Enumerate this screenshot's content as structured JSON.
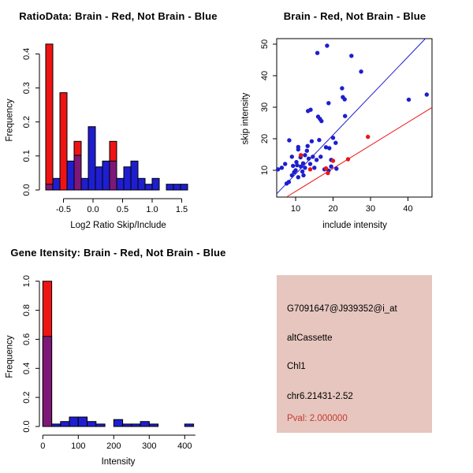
{
  "colors": {
    "red": "#EE1414",
    "blue": "#1E1ECF",
    "purple": "#7D1878",
    "pval_red": "#C53A2E",
    "panel_pink": "#E6C6BF",
    "axis": "#000000"
  },
  "chart_data": [
    {
      "type": "bar",
      "panel": "top-left",
      "title": "RatioData: Brain - Red, Not Brain - Blue",
      "xlabel": "Log2 Ratio Skip/Include",
      "ylabel": "Frequency",
      "legend_note": "red = Brain, blue = Not Brain, purple = overlap",
      "xlim": [
        -0.85,
        1.65
      ],
      "ylim": [
        0,
        0.44
      ],
      "xticks": [
        "-0.5",
        "0.0",
        "0.5",
        "1.0",
        "1.5"
      ],
      "xtick_values": [
        -0.5,
        0.0,
        0.5,
        1.0,
        1.5
      ],
      "yticks": [
        "0.0",
        "0.1",
        "0.2",
        "0.3",
        "0.4"
      ],
      "ytick_values": [
        0.0,
        0.1,
        0.2,
        0.3,
        0.4
      ],
      "bin_width": 0.12,
      "bins": [
        {
          "x": -0.8,
          "blue": 0.017,
          "red": 0.429
        },
        {
          "x": -0.68,
          "blue": 0.034,
          "red": 0
        },
        {
          "x": -0.56,
          "blue": 0,
          "red": 0.286
        },
        {
          "x": -0.44,
          "blue": 0.085,
          "red": 0
        },
        {
          "x": -0.32,
          "blue": 0.102,
          "red": 0.143
        },
        {
          "x": -0.2,
          "blue": 0.034,
          "red": 0
        },
        {
          "x": -0.08,
          "blue": 0.186,
          "red": 0
        },
        {
          "x": 0.04,
          "blue": 0.068,
          "red": 0
        },
        {
          "x": 0.16,
          "blue": 0.085,
          "red": 0
        },
        {
          "x": 0.28,
          "blue": 0.085,
          "red": 0.143
        },
        {
          "x": 0.4,
          "blue": 0.034,
          "red": 0
        },
        {
          "x": 0.52,
          "blue": 0.068,
          "red": 0
        },
        {
          "x": 0.64,
          "blue": 0.085,
          "red": 0
        },
        {
          "x": 0.76,
          "blue": 0.034,
          "red": 0
        },
        {
          "x": 0.88,
          "blue": 0.017,
          "red": 0
        },
        {
          "x": 1.0,
          "blue": 0.034,
          "red": 0
        },
        {
          "x": 1.12,
          "blue": 0,
          "red": 0
        },
        {
          "x": 1.24,
          "blue": 0.017,
          "red": 0
        },
        {
          "x": 1.36,
          "blue": 0.017,
          "red": 0
        },
        {
          "x": 1.48,
          "blue": 0.017,
          "red": 0
        }
      ]
    },
    {
      "type": "scatter",
      "panel": "top-right",
      "title": "Brain - Red, Not Brain - Blue",
      "xlabel": "include intensity",
      "ylabel": "skip intensity",
      "xlim": [
        4.9,
        46.4
      ],
      "ylim": [
        1.5,
        51.8
      ],
      "xticks": [
        "10",
        "20",
        "30",
        "40"
      ],
      "xtick_values": [
        10,
        20,
        30,
        40
      ],
      "yticks": [
        "10",
        "20",
        "30",
        "40",
        "50"
      ],
      "ytick_values": [
        10,
        20,
        30,
        40,
        50
      ],
      "blue_points": [
        [
          15.8,
          47.2
        ],
        [
          18.4,
          49.5
        ],
        [
          24.9,
          46.3
        ],
        [
          27.5,
          41.3
        ],
        [
          22.4,
          36.0
        ],
        [
          22.6,
          33.2
        ],
        [
          23.1,
          32.5
        ],
        [
          18.8,
          31.3
        ],
        [
          13.3,
          28.8
        ],
        [
          16.0,
          27.0
        ],
        [
          16.5,
          26.3
        ],
        [
          16.9,
          25.6
        ],
        [
          23.2,
          27.2
        ],
        [
          40.2,
          32.4
        ],
        [
          45.0,
          34.0
        ],
        [
          8.3,
          19.5
        ],
        [
          14.3,
          19.2
        ],
        [
          16.3,
          19.6
        ],
        [
          20.0,
          20.3
        ],
        [
          20.7,
          18.7
        ],
        [
          19.0,
          17.0
        ],
        [
          10.7,
          16.6
        ],
        [
          13.0,
          16.2
        ],
        [
          10.7,
          17.4
        ],
        [
          13.2,
          17.7
        ],
        [
          18.1,
          17.3
        ],
        [
          9.0,
          14.3
        ],
        [
          12.5,
          14.8
        ],
        [
          13.5,
          13.7
        ],
        [
          14.6,
          14.3
        ],
        [
          15.6,
          13.3
        ],
        [
          16.7,
          14.3
        ],
        [
          19.5,
          13.3
        ],
        [
          7.2,
          12.0
        ],
        [
          9.3,
          11.4
        ],
        [
          10.4,
          11.6
        ],
        [
          11.4,
          11.2
        ],
        [
          12.5,
          10.8
        ],
        [
          15.0,
          10.8
        ],
        [
          17.7,
          10.3
        ],
        [
          18.8,
          9.9
        ],
        [
          9.0,
          8.4
        ],
        [
          10.7,
          7.8
        ],
        [
          12.1,
          8.4
        ],
        [
          6.3,
          10.8
        ],
        [
          5.3,
          10.3
        ],
        [
          7.6,
          5.8
        ],
        [
          8.2,
          6.3
        ],
        [
          19.5,
          11.2
        ],
        [
          20.9,
          10.5
        ],
        [
          11.3,
          14.1
        ],
        [
          12.0,
          12.2
        ],
        [
          10.0,
          10.0
        ],
        [
          9.6,
          9.4
        ],
        [
          13.9,
          12.0
        ],
        [
          11.8,
          9.6
        ],
        [
          10.2,
          12.6
        ],
        [
          14.0,
          29.2
        ]
      ],
      "red_points": [
        [
          11.4,
          14.8
        ],
        [
          13.9,
          10.3
        ],
        [
          18.1,
          10.6
        ],
        [
          18.6,
          9.1
        ],
        [
          20.0,
          13.0
        ],
        [
          24.0,
          13.5
        ],
        [
          29.3,
          20.6
        ]
      ],
      "blue_line": [
        [
          4.95,
          2.56
        ],
        [
          44.66,
          51.75
        ]
      ],
      "red_line": [
        [
          7.53,
          1.5
        ],
        [
          46.4,
          29.9
        ]
      ]
    },
    {
      "type": "bar",
      "panel": "bottom-left",
      "title": "Gene Itensity: Brain - Red, Not Brain - Blue",
      "xlabel": "Intensity",
      "ylabel": "Frequency",
      "legend_note": "red = Brain, blue = Not Brain, purple = overlap",
      "xlim": [
        -10,
        435
      ],
      "ylim": [
        0,
        1.0
      ],
      "xticks": [
        "0",
        "100",
        "200",
        "300",
        "400"
      ],
      "xtick_values": [
        0,
        100,
        200,
        300,
        400
      ],
      "yticks": [
        "0.0",
        "0.2",
        "0.4",
        "0.6",
        "0.8",
        "1.0"
      ],
      "ytick_values": [
        0.0,
        0.2,
        0.4,
        0.6,
        0.8,
        1.0
      ],
      "bin_width": 25,
      "bins": [
        {
          "x": 0,
          "blue": 0.62,
          "red": 1.0
        },
        {
          "x": 25,
          "blue": 0.017,
          "red": 0
        },
        {
          "x": 50,
          "blue": 0.034,
          "red": 0
        },
        {
          "x": 75,
          "blue": 0.065,
          "red": 0
        },
        {
          "x": 100,
          "blue": 0.065,
          "red": 0
        },
        {
          "x": 125,
          "blue": 0.034,
          "red": 0
        },
        {
          "x": 150,
          "blue": 0.017,
          "red": 0
        },
        {
          "x": 200,
          "blue": 0.048,
          "red": 0
        },
        {
          "x": 225,
          "blue": 0.017,
          "red": 0
        },
        {
          "x": 250,
          "blue": 0.017,
          "red": 0
        },
        {
          "x": 275,
          "blue": 0.034,
          "red": 0
        },
        {
          "x": 300,
          "blue": 0.017,
          "red": 0
        },
        {
          "x": 400,
          "blue": 0.017,
          "red": 0
        }
      ]
    }
  ],
  "info_panel": {
    "lines": [
      "G7091647@J939352@i_at",
      "altCassette",
      "Chl1",
      "chr6.21431-2.52"
    ],
    "pval": "Pval: 2.000000"
  }
}
